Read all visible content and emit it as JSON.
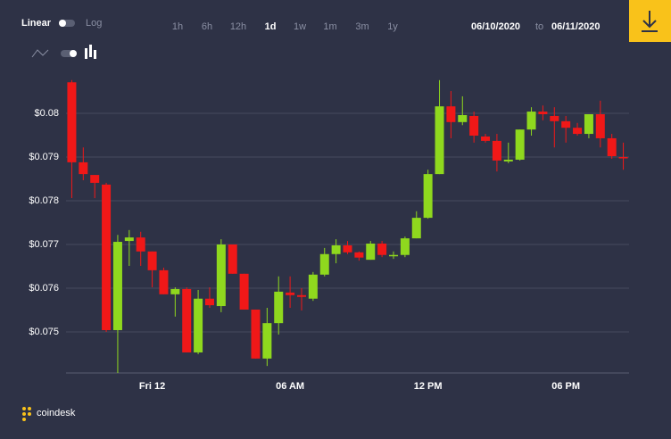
{
  "controls": {
    "scale_options": [
      "Linear",
      "Log"
    ],
    "ranges": [
      "1h",
      "6h",
      "12h",
      "1d",
      "1w",
      "1m",
      "3m",
      "1y"
    ],
    "active_range_index": 3,
    "date_from": "06/10/2020",
    "date_sep": "to",
    "date_to": "06/11/2020"
  },
  "brand": "coindesk",
  "chart_data": {
    "type": "candlestick",
    "categories": [
      null,
      null,
      null,
      null,
      null,
      null,
      null,
      "Fri 12",
      null,
      null,
      null,
      null,
      null,
      null,
      null,
      null,
      null,
      null,
      null,
      "06 AM",
      null,
      null,
      null,
      null,
      null,
      null,
      null,
      null,
      null,
      null,
      null,
      "12 PM",
      null,
      null,
      null,
      null,
      null,
      null,
      null,
      null,
      null,
      null,
      null,
      "06 PM",
      null,
      null,
      null,
      null,
      null
    ],
    "open": [
      0.08071,
      0.07888,
      0.07859,
      0.07837,
      0.07504,
      0.07708,
      0.07716,
      0.07684,
      0.07641,
      0.07586,
      0.07598,
      0.07453,
      0.07576,
      0.07559,
      0.077,
      0.07633,
      0.07551,
      0.07439,
      0.0752,
      0.0759,
      0.07584,
      0.07576,
      0.07631,
      0.07678,
      0.07698,
      0.07682,
      0.07665,
      0.07702,
      0.07673,
      0.07676,
      0.07714,
      0.07761,
      0.07861,
      0.08016,
      0.0798,
      0.07994,
      0.07947,
      0.07937,
      0.0789,
      0.07894,
      0.07963,
      0.08004,
      0.07994,
      0.07982,
      0.07967,
      0.07953,
      0.07998,
      0.07943,
      0.079
    ],
    "high": [
      0.08076,
      0.07922,
      0.07859,
      0.07841,
      0.07722,
      0.07733,
      0.07729,
      0.07684,
      0.07647,
      0.07602,
      0.07602,
      0.07596,
      0.07602,
      0.07712,
      0.077,
      0.07633,
      0.07551,
      0.07555,
      0.07627,
      0.07627,
      0.076,
      0.07637,
      0.07692,
      0.07712,
      0.07708,
      0.07684,
      0.07708,
      0.07708,
      0.07684,
      0.07718,
      0.07776,
      0.07871,
      0.08076,
      0.08051,
      0.08039,
      0.08004,
      0.07953,
      0.07953,
      0.07933,
      0.07963,
      0.08014,
      0.08018,
      0.08014,
      0.07994,
      0.07978,
      0.07998,
      0.08029,
      0.07953,
      0.07933
    ],
    "low": [
      0.07806,
      0.07847,
      0.07806,
      0.075,
      0.07406,
      0.07651,
      0.07651,
      0.07602,
      0.07586,
      0.07535,
      0.07453,
      0.07449,
      0.07555,
      0.07545,
      0.07633,
      0.07551,
      0.07439,
      0.07422,
      0.07494,
      0.07555,
      0.07549,
      0.07571,
      0.07627,
      0.07657,
      0.07678,
      0.07663,
      0.07665,
      0.07671,
      0.07667,
      0.07671,
      0.07714,
      0.07759,
      0.07861,
      0.07943,
      0.07973,
      0.07933,
      0.07933,
      0.07867,
      0.07886,
      0.07892,
      0.07949,
      0.07984,
      0.07922,
      0.07933,
      0.07949,
      0.07943,
      0.07922,
      0.07896,
      0.07871
    ],
    "close": [
      0.07888,
      0.07861,
      0.07841,
      0.07504,
      0.07706,
      0.07716,
      0.07684,
      0.07641,
      0.07586,
      0.07598,
      0.07453,
      0.07576,
      0.07561,
      0.077,
      0.07633,
      0.07551,
      0.07439,
      0.0752,
      0.07592,
      0.07584,
      0.0758,
      0.07631,
      0.07678,
      0.07698,
      0.07682,
      0.0767,
      0.07702,
      0.07676,
      0.07676,
      0.07714,
      0.07761,
      0.07861,
      0.08016,
      0.0798,
      0.07996,
      0.07949,
      0.07937,
      0.07892,
      0.07894,
      0.07963,
      0.08004,
      0.07998,
      0.07982,
      0.07967,
      0.07953,
      0.07998,
      0.07943,
      0.07902,
      0.07898
    ],
    "up_color": "#8fd81e",
    "down_color": "#f01818",
    "ylim": [
      0.07406,
      0.08096
    ],
    "yticks": [
      {
        "value": 0.075,
        "label": "$0.075"
      },
      {
        "value": 0.076,
        "label": "$0.076"
      },
      {
        "value": 0.077,
        "label": "$0.077"
      },
      {
        "value": 0.078,
        "label": "$0.078"
      },
      {
        "value": 0.079,
        "label": "$0.079"
      },
      {
        "value": 0.08,
        "label": "$0.08"
      }
    ],
    "grid": true
  }
}
